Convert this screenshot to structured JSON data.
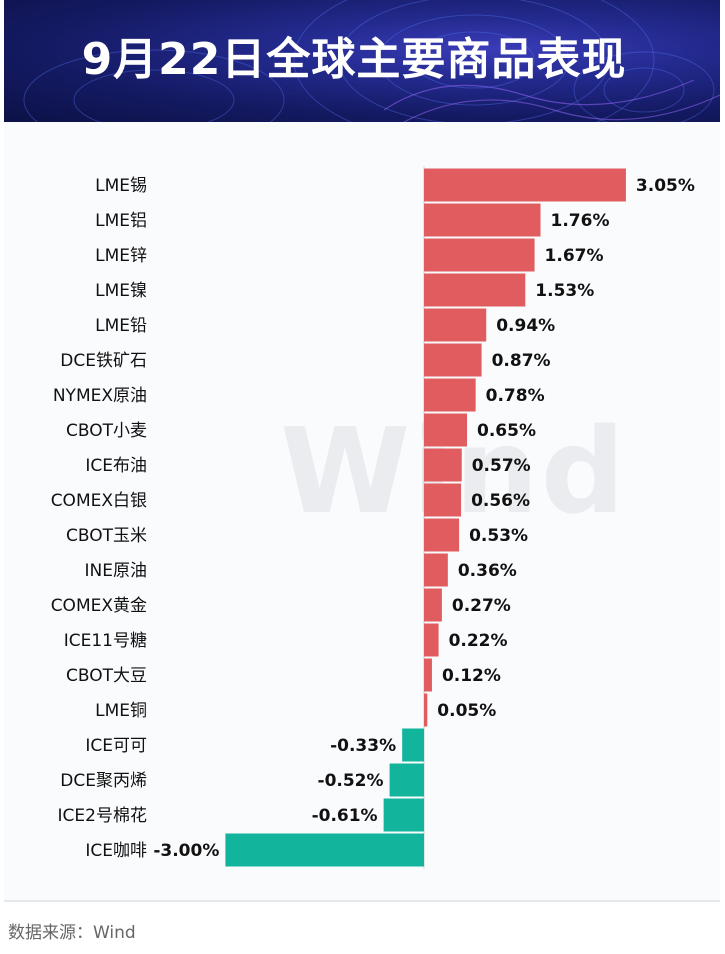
{
  "header": {
    "title": "9月22日全球主要商品表现"
  },
  "watermark": "Wind",
  "source": "数据来源：Wind",
  "colors": {
    "positive": "#e05c5e",
    "negative": "#13b49c",
    "banner": "#1a2170"
  },
  "chart_data": {
    "type": "bar",
    "orientation": "horizontal",
    "title": "9月22日全球主要商品表现",
    "categories": [
      "LME锡",
      "LME铝",
      "LME锌",
      "LME镍",
      "LME铅",
      "DCE铁矿石",
      "NYMEX原油",
      "CBOT小麦",
      "ICE布油",
      "COMEX白银",
      "CBOT玉米",
      "INE原油",
      "COMEX黄金",
      "ICE11号糖",
      "CBOT大豆",
      "LME铜",
      "ICE可可",
      "DCE聚丙烯",
      "ICE2号棉花",
      "ICE咖啡"
    ],
    "values": [
      3.05,
      1.76,
      1.67,
      1.53,
      0.94,
      0.87,
      0.78,
      0.65,
      0.57,
      0.56,
      0.53,
      0.36,
      0.27,
      0.22,
      0.12,
      0.05,
      -0.33,
      -0.52,
      -0.61,
      -3.0
    ],
    "labels": [
      "3.05%",
      "1.76%",
      "1.67%",
      "1.53%",
      "0.94%",
      "0.87%",
      "0.78%",
      "0.65%",
      "0.57%",
      "0.56%",
      "0.53%",
      "0.36%",
      "0.27%",
      "0.22%",
      "0.12%",
      "0.05%",
      "-0.33%",
      "-0.52%",
      "-0.61%",
      "-3.00%"
    ],
    "unit": "%",
    "grid": false,
    "legend": "none"
  }
}
